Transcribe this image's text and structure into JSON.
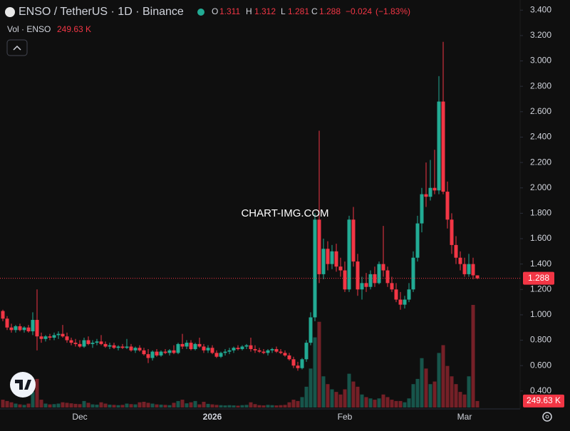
{
  "header": {
    "symbol": "ENSO / TetherUS · 1D · Binance",
    "ohlc_letters": [
      "O",
      "H",
      "L",
      "C"
    ],
    "change": "−0.024",
    "change_pct": "(−1.83%)",
    "volume_label": "Vol · ENSO",
    "volume_value": "249.63 K",
    "watermark": "CHART-IMG.COM"
  },
  "chart_data": {
    "type": "candlestick",
    "up_color": "#22ab94",
    "down_color": "#f23645",
    "ylim": [
      0.27,
      3.48
    ],
    "yticks": [
      {
        "value": 0.4,
        "label": "0.400"
      },
      {
        "value": 0.6,
        "label": "0.600"
      },
      {
        "value": 0.8,
        "label": "0.800"
      },
      {
        "value": 1.0,
        "label": "1.000"
      },
      {
        "value": 1.2,
        "label": "1.200"
      },
      {
        "value": 1.4,
        "label": "1.400"
      },
      {
        "value": 1.6,
        "label": "1.600"
      },
      {
        "value": 1.8,
        "label": "1.800"
      },
      {
        "value": 2.0,
        "label": "2.000"
      },
      {
        "value": 2.2,
        "label": "2.200"
      },
      {
        "value": 2.4,
        "label": "2.400"
      },
      {
        "value": 2.6,
        "label": "2.600"
      },
      {
        "value": 2.8,
        "label": "2.800"
      },
      {
        "value": 3.0,
        "label": "3.000"
      },
      {
        "value": 3.2,
        "label": "3.200"
      },
      {
        "value": 3.4,
        "label": "3.400"
      }
    ],
    "categories": [
      null,
      null,
      null,
      null,
      null,
      null,
      null,
      null,
      null,
      null,
      null,
      null,
      null,
      null,
      null,
      null,
      null,
      null,
      "Dec",
      null,
      null,
      null,
      null,
      null,
      null,
      null,
      null,
      null,
      null,
      null,
      null,
      null,
      null,
      null,
      null,
      null,
      null,
      null,
      null,
      null,
      null,
      null,
      null,
      null,
      null,
      null,
      null,
      null,
      null,
      "2026",
      null,
      null,
      null,
      null,
      null,
      null,
      null,
      null,
      null,
      null,
      null,
      null,
      null,
      null,
      null,
      null,
      null,
      null,
      null,
      null,
      null,
      null,
      null,
      null,
      null,
      null,
      null,
      null,
      null,
      null,
      "Feb",
      null,
      null,
      null,
      null,
      null,
      null,
      null,
      null,
      null,
      null,
      null,
      null,
      null,
      null,
      null,
      null,
      null,
      null,
      null,
      null,
      null,
      null,
      null,
      null,
      null,
      null,
      null,
      "Mar",
      null,
      null,
      null
    ],
    "open": [
      1.03,
      0.97,
      0.9,
      0.88,
      0.91,
      0.88,
      0.9,
      0.87,
      0.96,
      0.83,
      0.81,
      0.83,
      0.82,
      0.84,
      0.85,
      0.83,
      0.8,
      0.78,
      0.77,
      0.75,
      0.8,
      0.77,
      0.78,
      0.79,
      0.77,
      0.75,
      0.76,
      0.74,
      0.75,
      0.74,
      0.75,
      0.72,
      0.74,
      0.72,
      0.69,
      0.66,
      0.71,
      0.68,
      0.71,
      0.7,
      0.72,
      0.7,
      0.77,
      0.75,
      0.78,
      0.73,
      0.77,
      0.75,
      0.72,
      0.74,
      0.7,
      0.67,
      0.7,
      0.71,
      0.72,
      0.74,
      0.73,
      0.75,
      0.76,
      0.73,
      0.72,
      0.71,
      0.7,
      0.72,
      0.73,
      0.71,
      0.7,
      0.68,
      0.65,
      0.6,
      0.58,
      0.65,
      0.78,
      0.98,
      1.75,
      1.32,
      1.52,
      1.4,
      1.5,
      1.38,
      1.35,
      1.2,
      1.75,
      1.42,
      1.2,
      1.25,
      1.22,
      1.32,
      1.25,
      1.4,
      1.35,
      1.25,
      1.2,
      1.12,
      1.08,
      1.12,
      1.2,
      1.45,
      1.72,
      1.95,
      1.93,
      2.0,
      1.98,
      2.68,
      1.97,
      1.75,
      1.55,
      1.45,
      1.4,
      1.32,
      1.4,
      1.311
    ],
    "high": [
      1.04,
      0.99,
      0.93,
      0.92,
      0.93,
      0.91,
      0.92,
      1.02,
      1.2,
      0.86,
      0.84,
      0.85,
      0.86,
      0.87,
      0.92,
      0.86,
      0.82,
      0.81,
      0.8,
      0.82,
      0.83,
      0.8,
      0.81,
      0.84,
      0.79,
      0.78,
      0.78,
      0.76,
      0.77,
      0.81,
      0.77,
      0.75,
      0.76,
      0.74,
      0.73,
      0.72,
      0.73,
      0.72,
      0.73,
      0.73,
      0.76,
      0.78,
      0.85,
      0.8,
      0.8,
      0.78,
      0.82,
      0.77,
      0.76,
      0.76,
      0.72,
      0.71,
      0.73,
      0.74,
      0.75,
      0.76,
      0.76,
      0.77,
      0.82,
      0.76,
      0.74,
      0.73,
      0.73,
      0.74,
      0.75,
      0.73,
      0.72,
      0.7,
      0.67,
      0.63,
      0.66,
      0.8,
      1.02,
      1.8,
      2.45,
      1.6,
      1.58,
      1.55,
      1.56,
      1.45,
      1.42,
      1.78,
      1.85,
      1.48,
      1.3,
      1.33,
      1.35,
      1.38,
      1.42,
      1.7,
      1.38,
      1.3,
      1.25,
      1.18,
      1.15,
      1.25,
      1.5,
      1.78,
      2.0,
      2.2,
      2.22,
      2.3,
      2.88,
      3.15,
      2.05,
      1.8,
      1.62,
      1.5,
      1.45,
      1.48,
      1.45,
      1.312
    ],
    "low": [
      0.95,
      0.88,
      0.86,
      0.86,
      0.87,
      0.86,
      0.86,
      0.84,
      0.72,
      0.78,
      0.79,
      0.8,
      0.8,
      0.81,
      0.82,
      0.78,
      0.76,
      0.75,
      0.74,
      0.74,
      0.76,
      0.74,
      0.76,
      0.76,
      0.74,
      0.73,
      0.73,
      0.72,
      0.73,
      0.73,
      0.71,
      0.7,
      0.71,
      0.68,
      0.62,
      0.64,
      0.67,
      0.67,
      0.69,
      0.68,
      0.69,
      0.69,
      0.73,
      0.73,
      0.72,
      0.72,
      0.74,
      0.7,
      0.7,
      0.69,
      0.66,
      0.66,
      0.68,
      0.69,
      0.7,
      0.72,
      0.72,
      0.73,
      0.71,
      0.7,
      0.7,
      0.69,
      0.68,
      0.7,
      0.7,
      0.69,
      0.67,
      0.64,
      0.58,
      0.56,
      0.57,
      0.63,
      0.76,
      0.95,
      1.25,
      1.28,
      1.35,
      1.36,
      1.34,
      1.3,
      1.18,
      1.18,
      1.38,
      1.15,
      1.12,
      1.18,
      1.2,
      1.22,
      1.24,
      1.3,
      1.22,
      1.18,
      1.1,
      1.04,
      1.05,
      1.1,
      1.18,
      1.42,
      1.65,
      1.85,
      1.9,
      1.95,
      1.95,
      1.95,
      1.68,
      1.48,
      1.4,
      1.35,
      1.3,
      1.3,
      1.28,
      1.281
    ],
    "close": [
      0.97,
      0.9,
      0.88,
      0.91,
      0.88,
      0.9,
      0.87,
      0.96,
      0.83,
      0.81,
      0.83,
      0.82,
      0.84,
      0.85,
      0.83,
      0.8,
      0.78,
      0.77,
      0.75,
      0.8,
      0.77,
      0.78,
      0.79,
      0.77,
      0.75,
      0.76,
      0.74,
      0.75,
      0.74,
      0.75,
      0.72,
      0.74,
      0.72,
      0.69,
      0.66,
      0.71,
      0.68,
      0.71,
      0.7,
      0.72,
      0.7,
      0.77,
      0.75,
      0.78,
      0.73,
      0.77,
      0.75,
      0.72,
      0.74,
      0.7,
      0.67,
      0.7,
      0.71,
      0.72,
      0.74,
      0.73,
      0.75,
      0.76,
      0.73,
      0.72,
      0.71,
      0.7,
      0.72,
      0.73,
      0.71,
      0.7,
      0.68,
      0.65,
      0.6,
      0.58,
      0.65,
      0.78,
      0.98,
      1.75,
      1.32,
      1.52,
      1.4,
      1.5,
      1.38,
      1.35,
      1.2,
      1.75,
      1.42,
      1.2,
      1.25,
      1.22,
      1.32,
      1.25,
      1.4,
      1.35,
      1.25,
      1.2,
      1.12,
      1.08,
      1.12,
      1.2,
      1.45,
      1.72,
      1.95,
      1.93,
      2.0,
      1.98,
      2.68,
      1.97,
      1.75,
      1.55,
      1.45,
      1.4,
      1.32,
      1.4,
      1.311,
      1.288
    ],
    "volume": [
      300,
      250,
      200,
      150,
      120,
      100,
      150,
      600,
      1100,
      300,
      150,
      120,
      130,
      150,
      200,
      180,
      160,
      140,
      130,
      250,
      180,
      120,
      110,
      200,
      150,
      110,
      100,
      90,
      100,
      150,
      130,
      120,
      200,
      220,
      180,
      150,
      120,
      110,
      100,
      90,
      180,
      250,
      300,
      160,
      200,
      250,
      120,
      220,
      140,
      120,
      100,
      90,
      80,
      90,
      80,
      70,
      90,
      100,
      200,
      130,
      90,
      80,
      100,
      90,
      80,
      90,
      100,
      200,
      300,
      250,
      400,
      800,
      1500,
      2700,
      3300,
      1200,
      900,
      700,
      600,
      500,
      700,
      1300,
      1000,
      800,
      500,
      400,
      350,
      300,
      350,
      500,
      400,
      300,
      250,
      250,
      200,
      350,
      900,
      1100,
      1900,
      1500,
      900,
      1000,
      2100,
      2400,
      1600,
      1200,
      900,
      600,
      500,
      1200,
      3950,
      249.63
    ]
  }
}
